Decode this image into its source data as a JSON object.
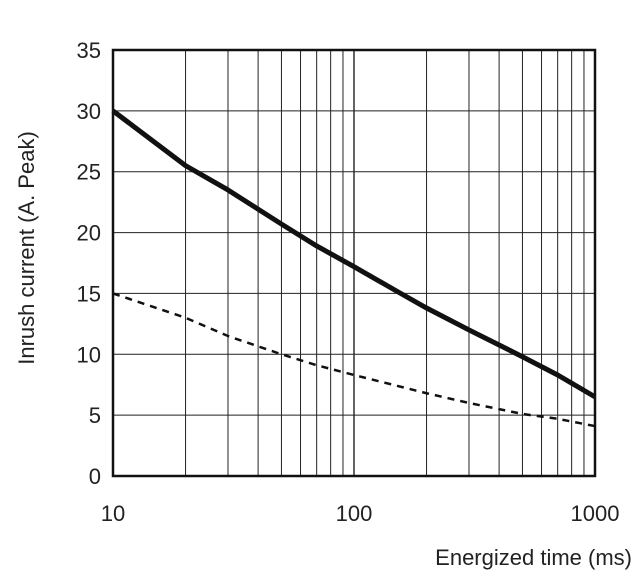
{
  "chart_data": {
    "type": "line",
    "xscale": "log",
    "xlim": [
      10,
      1000
    ],
    "ylim": [
      0,
      35
    ],
    "grid": true,
    "xlabel": "Energized time (ms)",
    "ylabel": "Inrush current (A. Peak)",
    "xticks": [
      {
        "value": 10,
        "label": "10"
      },
      {
        "value": 100,
        "label": "100"
      },
      {
        "value": 1000,
        "label": "1000"
      }
    ],
    "yticks": [
      {
        "value": 0,
        "label": "0"
      },
      {
        "value": 5,
        "label": "5"
      },
      {
        "value": 10,
        "label": "10"
      },
      {
        "value": 15,
        "label": "15"
      },
      {
        "value": 20,
        "label": "20"
      },
      {
        "value": 25,
        "label": "25"
      },
      {
        "value": 30,
        "label": "30"
      },
      {
        "value": 35,
        "label": "35"
      }
    ],
    "series": [
      {
        "style": "solid",
        "color": "#111111",
        "points": [
          [
            10,
            30
          ],
          [
            20,
            25.5
          ],
          [
            30,
            23.5
          ],
          [
            50,
            20.7
          ],
          [
            70,
            18.9
          ],
          [
            100,
            17.2
          ],
          [
            150,
            15.2
          ],
          [
            200,
            13.8
          ],
          [
            300,
            12.0
          ],
          [
            500,
            9.8
          ],
          [
            700,
            8.3
          ],
          [
            1000,
            6.5
          ]
        ]
      },
      {
        "style": "dashed",
        "color": "#111111",
        "points": [
          [
            10,
            15
          ],
          [
            20,
            13
          ],
          [
            30,
            11.5
          ],
          [
            50,
            10
          ],
          [
            70,
            9.1
          ],
          [
            100,
            8.3
          ],
          [
            200,
            6.8
          ],
          [
            300,
            6.0
          ],
          [
            500,
            5.1
          ],
          [
            700,
            4.7
          ],
          [
            1000,
            4.1
          ]
        ]
      }
    ]
  }
}
